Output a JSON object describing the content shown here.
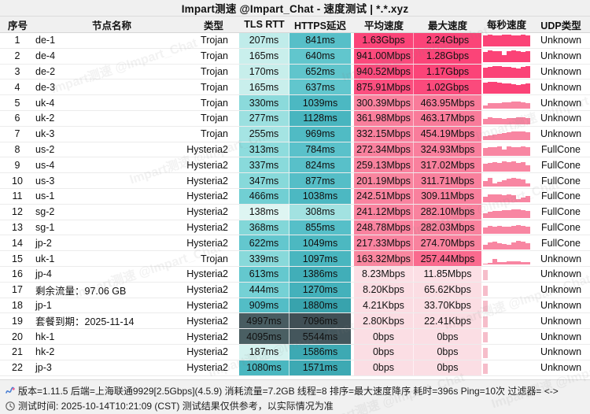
{
  "title": "Impart测速 @Impart_Chat - 速度测试 | *.*.xyz",
  "watermark_text": "Impart测速 @Impart_Chat",
  "columns": [
    {
      "key": "index",
      "label": "序号"
    },
    {
      "key": "node-name",
      "label": "节点名称"
    },
    {
      "key": "type",
      "label": "类型"
    },
    {
      "key": "tls-rtt",
      "label": "TLS RTT"
    },
    {
      "key": "https-delay",
      "label": "HTTPS延迟"
    },
    {
      "key": "avg-speed",
      "label": "平均速度"
    },
    {
      "key": "max-speed",
      "label": "最大速度"
    },
    {
      "key": "speed-per-sec",
      "label": "每秒速度"
    },
    {
      "key": "udp-type",
      "label": "UDP类型"
    }
  ],
  "rows": [
    {
      "idx": "1",
      "name": "de-1",
      "type": "Trojan",
      "tls": "207ms",
      "https": "841ms",
      "avg": "1.63Gbps",
      "max": "2.24Gbps",
      "udp": "Unknown",
      "tls_bg": "#c0ecea",
      "https_bg": "#57bfc8",
      "avg_bg": "#fb4478",
      "max_bg": "#fb4478",
      "bar_color": "#fb4377",
      "bars": [
        0.9,
        0.97,
        0.92,
        0.88,
        0.95,
        1,
        0.93,
        0.9,
        0.97,
        0.92
      ]
    },
    {
      "idx": "2",
      "name": "de-4",
      "type": "Trojan",
      "tls": "165ms",
      "https": "640ms",
      "avg": "941.00Mbps",
      "max": "1.28Gbps",
      "udp": "Unknown",
      "tls_bg": "#c9efec",
      "https_bg": "#61c6cd",
      "avg_bg": "#fb4a7c",
      "max_bg": "#fb4478",
      "bar_color": "#fb4377",
      "bars": [
        0.85,
        0.95,
        0.9,
        0.88,
        0.6,
        0.92,
        0.95,
        0.9,
        0.85,
        0.88
      ]
    },
    {
      "idx": "3",
      "name": "de-2",
      "type": "Trojan",
      "tls": "170ms",
      "https": "652ms",
      "avg": "940.52Mbps",
      "max": "1.17Gbps",
      "udp": "Unknown",
      "tls_bg": "#c7eeeb",
      "https_bg": "#60c5cc",
      "avg_bg": "#fb4a7c",
      "max_bg": "#fb4478",
      "bar_color": "#fb4377",
      "bars": [
        0.8,
        0.9,
        0.97,
        0.93,
        0.88,
        0.85,
        0.8,
        0.78,
        0.9,
        0.97
      ]
    },
    {
      "idx": "4",
      "name": "de-3",
      "type": "Trojan",
      "tls": "165ms",
      "https": "637ms",
      "avg": "875.91Mbps",
      "max": "1.02Gbps",
      "udp": "Unknown",
      "tls_bg": "#c9efec",
      "https_bg": "#61c6cd",
      "avg_bg": "#fb4f7f",
      "max_bg": "#fb4a7c",
      "bar_color": "#fb4377",
      "bars": [
        0.88,
        0.95,
        0.9,
        0.85,
        0.82,
        0.78,
        0.74,
        0.7,
        0.75,
        0.8
      ]
    },
    {
      "idx": "5",
      "name": "uk-4",
      "type": "Trojan",
      "tls": "330ms",
      "https": "1039ms",
      "avg": "300.39Mbps",
      "max": "463.95Mbps",
      "udp": "Unknown",
      "tls_bg": "#8bdadb",
      "https_bg": "#4cb8c2",
      "avg_bg": "#f9839f",
      "max_bg": "#f97b9a",
      "bar_color": "#f886a2",
      "bars": [
        0.3,
        0.45,
        0.5,
        0.48,
        0.52,
        0.55,
        0.6,
        0.58,
        0.52,
        0.45
      ]
    },
    {
      "idx": "6",
      "name": "uk-2",
      "type": "Trojan",
      "tls": "277ms",
      "https": "1128ms",
      "avg": "361.98Mbps",
      "max": "463.17Mbps",
      "udp": "Unknown",
      "tls_bg": "#9be0e0",
      "https_bg": "#48b5bf",
      "avg_bg": "#f97e9c",
      "max_bg": "#f97b9a",
      "bar_color": "#f886a2",
      "bars": [
        0.48,
        0.58,
        0.54,
        0.5,
        0.46,
        0.5,
        0.55,
        0.6,
        0.56,
        0.5
      ]
    },
    {
      "idx": "7",
      "name": "uk-3",
      "type": "Trojan",
      "tls": "255ms",
      "https": "969ms",
      "avg": "332.15Mbps",
      "max": "454.19Mbps",
      "udp": "Unknown",
      "tls_bg": "#a5e4e3",
      "https_bg": "#50bbc4",
      "avg_bg": "#f9819e",
      "max_bg": "#f97c9b",
      "bar_color": "#f886a2",
      "bars": [
        0.3,
        0.4,
        0.48,
        0.52,
        0.58,
        0.62,
        0.68,
        0.72,
        0.68,
        0.62
      ]
    },
    {
      "idx": "8",
      "name": "us-2",
      "type": "Hysteria2",
      "tls": "313ms",
      "https": "784ms",
      "avg": "272.34Mbps",
      "max": "324.93Mbps",
      "udp": "FullCone",
      "tls_bg": "#8edcdd",
      "https_bg": "#5ac1ca",
      "avg_bg": "#f9819e",
      "max_bg": "#f97f9d",
      "bar_color": "#f886a2",
      "bars": [
        0.65,
        0.72,
        0.68,
        0.75,
        0.5,
        0.78,
        0.72,
        0.68,
        0.73,
        0.7
      ]
    },
    {
      "idx": "9",
      "name": "us-4",
      "type": "Hysteria2",
      "tls": "337ms",
      "https": "824ms",
      "avg": "259.13Mbps",
      "max": "317.02Mbps",
      "udp": "FullCone",
      "tls_bg": "#89dadb",
      "https_bg": "#58c0c9",
      "avg_bg": "#f9829e",
      "max_bg": "#f9809d",
      "bar_color": "#f886a2",
      "bars": [
        0.6,
        0.68,
        0.72,
        0.68,
        0.78,
        0.73,
        0.82,
        0.7,
        0.74,
        0.5
      ]
    },
    {
      "idx": "10",
      "name": "us-3",
      "type": "Hysteria2",
      "tls": "347ms",
      "https": "877ms",
      "avg": "201.19Mbps",
      "max": "311.71Mbps",
      "udp": "FullCone",
      "tls_bg": "#87d9da",
      "https_bg": "#55bec7",
      "avg_bg": "#f9859f",
      "max_bg": "#f9809d",
      "bar_color": "#f886a2",
      "bars": [
        0.45,
        0.72,
        0.3,
        0.42,
        0.52,
        0.68,
        0.72,
        0.68,
        0.62,
        0.28
      ]
    },
    {
      "idx": "11",
      "name": "us-1",
      "type": "Hysteria2",
      "tls": "466ms",
      "https": "1038ms",
      "avg": "242.51Mbps",
      "max": "309.11Mbps",
      "udp": "FullCone",
      "tls_bg": "#71cfd3",
      "https_bg": "#4cb8c2",
      "avg_bg": "#f9839f",
      "max_bg": "#f9809d",
      "bar_color": "#f886a2",
      "bars": [
        0.45,
        0.62,
        0.68,
        0.64,
        0.6,
        0.64,
        0.58,
        0.3,
        0.42,
        0.52
      ]
    },
    {
      "idx": "12",
      "name": "sg-2",
      "type": "Hysteria2",
      "tls": "138ms",
      "https": "308ms",
      "avg": "241.12Mbps",
      "max": "282.10Mbps",
      "udp": "FullCone",
      "tls_bg": "#def5f2",
      "https_bg": "#a2e2e1",
      "avg_bg": "#f9839f",
      "max_bg": "#f9829e",
      "bar_color": "#f886a2",
      "bars": [
        0.4,
        0.52,
        0.58,
        0.58,
        0.62,
        0.64,
        0.68,
        0.68,
        0.62,
        0.58
      ]
    },
    {
      "idx": "13",
      "name": "sg-1",
      "type": "Hysteria2",
      "tls": "368ms",
      "https": "855ms",
      "avg": "248.78Mbps",
      "max": "282.03Mbps",
      "udp": "FullCone",
      "tls_bg": "#82d7d8",
      "https_bg": "#56bfc8",
      "avg_bg": "#f9839f",
      "max_bg": "#f9829e",
      "bar_color": "#f886a2",
      "bars": [
        0.52,
        0.62,
        0.58,
        0.62,
        0.58,
        0.54,
        0.62,
        0.68,
        0.62,
        0.58
      ]
    },
    {
      "idx": "14",
      "name": "jp-2",
      "type": "Hysteria2",
      "tls": "622ms",
      "https": "1049ms",
      "avg": "217.33Mbps",
      "max": "274.70Mbps",
      "udp": "FullCone",
      "tls_bg": "#63c7ce",
      "https_bg": "#4cb8c1",
      "avg_bg": "#f984a0",
      "max_bg": "#f9829e",
      "bar_color": "#f886a2",
      "bars": [
        0.38,
        0.52,
        0.62,
        0.48,
        0.42,
        0.38,
        0.58,
        0.68,
        0.62,
        0.48
      ]
    },
    {
      "idx": "15",
      "name": "uk-1",
      "type": "Trojan",
      "tls": "339ms",
      "https": "1097ms",
      "avg": "163.32Mbps",
      "max": "257.44Mbps",
      "udp": "Unknown",
      "tls_bg": "#88d9da",
      "https_bg": "#49b6bf",
      "avg_bg": "#f9879f",
      "max_bg": "#fa6a8e",
      "bar_color": "#f886a2",
      "bars": [
        0.12,
        0.18,
        0.48,
        0.22,
        0.2,
        0.28,
        0.27,
        0.26,
        0.25,
        0.22
      ]
    },
    {
      "idx": "16",
      "name": "jp-4",
      "type": "Hysteria2",
      "tls": "613ms",
      "https": "1386ms",
      "avg": "8.23Mbps",
      "max": "11.85Mbps",
      "udp": "Unknown",
      "tls_bg": "#64c8ce",
      "https_bg": "#41aeb8",
      "avg_bg": "#fcdfe5",
      "max_bg": "#fcdfe5",
      "bar_color": "#f6bdca",
      "bars": [
        0.85,
        0,
        0,
        0,
        0,
        0,
        0,
        0,
        0,
        0
      ]
    },
    {
      "idx": "17",
      "name": "剩余流量：97.06 GB",
      "type": "Hysteria2",
      "tls": "444ms",
      "https": "1270ms",
      "avg": "8.20Kbps",
      "max": "65.62Kbps",
      "udp": "Unknown",
      "tls_bg": "#75d1d5",
      "https_bg": "#44b1bb",
      "avg_bg": "#fbdde3",
      "max_bg": "#fbdde3",
      "bar_color": "#f6bdca",
      "bars": [
        0.85,
        0,
        0,
        0,
        0,
        0,
        0,
        0,
        0,
        0
      ]
    },
    {
      "idx": "18",
      "name": "jp-1",
      "type": "Hysteria2",
      "tls": "909ms",
      "https": "1880ms",
      "avg": "4.21Kbps",
      "max": "33.70Kbps",
      "udp": "Unknown",
      "tls_bg": "#53bdc6",
      "https_bg": "#38a3ad",
      "avg_bg": "#fbdde3",
      "max_bg": "#fbdde3",
      "bar_color": "#f6bdca",
      "bars": [
        0.85,
        0,
        0,
        0,
        0,
        0,
        0,
        0,
        0,
        0
      ]
    },
    {
      "idx": "19",
      "name": "套餐到期：2025-11-14",
      "type": "Hysteria2",
      "tls": "4997ms",
      "https": "7096ms",
      "avg": "2.80Kbps",
      "max": "22.41Kbps",
      "udp": "Unknown",
      "tls_bg": "#485c61",
      "https_bg": "#404f55",
      "avg_bg": "#fbdde3",
      "max_bg": "#fbdde3",
      "bar_color": "#f6bdca",
      "bars": [
        0.85,
        0,
        0,
        0,
        0,
        0,
        0,
        0,
        0,
        0
      ]
    },
    {
      "idx": "20",
      "name": "hk-1",
      "type": "Hysteria2",
      "tls": "4095ms",
      "https": "5544ms",
      "avg": "0bps",
      "max": "0bps",
      "udp": "Unknown",
      "tls_bg": "#4a5f63",
      "https_bg": "#44565c",
      "avg_bg": "#fbdee4",
      "max_bg": "#fbdee4",
      "bar_color": "#f6bdca",
      "bars": [
        0.85,
        0,
        0,
        0,
        0,
        0,
        0,
        0,
        0,
        0
      ]
    },
    {
      "idx": "21",
      "name": "hk-2",
      "type": "Hysteria2",
      "tls": "187ms",
      "https": "1586ms",
      "avg": "0bps",
      "max": "0bps",
      "udp": "Unknown",
      "tls_bg": "#d4f2ef",
      "https_bg": "#3da9b3",
      "avg_bg": "#fbdee4",
      "max_bg": "#fbdee4",
      "bar_color": "#f6bdca",
      "bars": [
        0.85,
        0,
        0,
        0,
        0,
        0,
        0,
        0,
        0,
        0
      ]
    },
    {
      "idx": "22",
      "name": "jp-3",
      "type": "Hysteria2",
      "tls": "1080ms",
      "https": "1571ms",
      "avg": "0bps",
      "max": "0bps",
      "udp": "Unknown",
      "tls_bg": "#4ab7c0",
      "https_bg": "#3da9b3",
      "avg_bg": "#fbdee4",
      "max_bg": "#fbdee4",
      "bar_color": "#f6bdca",
      "bars": [
        0.85,
        0,
        0,
        0,
        0,
        0,
        0,
        0,
        0,
        0
      ]
    }
  ],
  "footer": {
    "line1": "版本=1.11.5  后端=上海联通9929[2.5Gbps](4.5.9) 消耗流量=7.2GB  线程=8  排序=最大速度降序  耗时=396s  Ping=10次  过滤器= <->",
    "line1_icon": "pulse-icon",
    "line2": "测试时间: 2025-10-14T10:21:09 (CST)  测试结果仅供参考，以实际情况为准",
    "line2_icon": "clock-icon"
  },
  "colors": {
    "vivid_pink": "#fb4478",
    "medium_pink": "#f9819e",
    "light_pink": "#fbdde3",
    "teal_light": "#c9efec",
    "teal_dark": "#48b5bf",
    "slate_dark": "#485c61",
    "band_gray": "#f0f0f0"
  }
}
